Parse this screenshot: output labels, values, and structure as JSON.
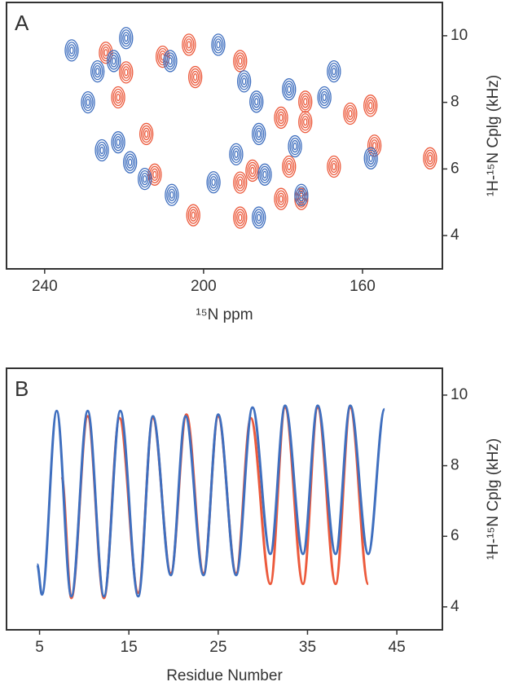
{
  "chart_data": [
    {
      "type": "scatter",
      "panel": "A",
      "xlabel": "¹⁵N ppm",
      "ylabel": "¹H-¹⁵N Cplg (kHz)",
      "xlim": [
        249.6,
        139.9
      ],
      "ylim": [
        3.0,
        11.0
      ],
      "xticks": [
        240,
        200,
        160
      ],
      "yticks": [
        4,
        6,
        8,
        10
      ],
      "series": [
        {
          "color": "#ec5a3c",
          "x": [
            224.6,
            221.5,
            219.5,
            214.4,
            210.3,
            203.7,
            202.1,
            212.3,
            202.6,
            190.8,
            190.8,
            187.7,
            178.5,
            180.5,
            175.4,
            174.4,
            180.5,
            174.4,
            167.2,
            163.1,
            158.0,
            190.8,
            143.0,
            157.0
          ],
          "y": [
            9.49,
            8.15,
            8.9,
            7.05,
            9.37,
            9.73,
            8.76,
            5.83,
            4.61,
            9.24,
            5.59,
            5.95,
            6.07,
            5.1,
            5.1,
            8.02,
            7.54,
            7.41,
            6.07,
            7.66,
            7.9,
            4.54,
            6.32,
            6.7
          ]
        },
        {
          "color": "#3f6fbf",
          "x": [
            233.2,
            226.7,
            229.1,
            219.5,
            222.6,
            221.5,
            225.6,
            218.5,
            214.8,
            208.0,
            208.4,
            197.5,
            196.3,
            191.8,
            189.8,
            186.1,
            186.7,
            186.1,
            184.6,
            178.5,
            177.0,
            175.4,
            169.6,
            167.2,
            157.9
          ],
          "y": [
            9.56,
            8.93,
            8.0,
            9.93,
            9.24,
            6.8,
            6.56,
            6.2,
            5.7,
            5.22,
            9.24,
            5.6,
            9.73,
            6.44,
            8.63,
            7.05,
            8.02,
            4.54,
            5.83,
            8.39,
            6.68,
            5.22,
            8.15,
            8.93,
            6.32
          ]
        }
      ]
    },
    {
      "type": "line",
      "panel": "B",
      "xlabel": "Residue Number",
      "ylabel": "¹H-¹⁵N Cplg (kHz)",
      "xlim": [
        1.3,
        50.1
      ],
      "ylim": [
        3.35,
        10.76
      ],
      "xticks": [
        5,
        15,
        25,
        35,
        45
      ],
      "yticks": [
        4,
        6,
        8,
        10
      ],
      "series": [
        {
          "color": "#ec5a3c",
          "x": [
            7.47,
            8.56,
            10.39,
            12.21,
            13.95,
            16.05,
            17.69,
            19.7,
            21.44,
            23.36,
            25.0,
            27.01,
            28.65,
            30.84,
            32.49,
            34.5,
            36.14,
            38.15,
            39.79,
            41.8
          ],
          "values": [
            7.7,
            4.25,
            9.4,
            4.25,
            9.35,
            4.4,
            9.35,
            4.95,
            9.45,
            4.95,
            9.4,
            4.95,
            9.35,
            4.65,
            9.65,
            4.65,
            9.65,
            4.65,
            9.65,
            4.65
          ]
        },
        {
          "color": "#3f6fbf",
          "x": [
            4.73,
            5.27,
            6.92,
            8.56,
            10.39,
            12.21,
            14.04,
            16.05,
            17.69,
            19.7,
            21.35,
            23.36,
            25.0,
            27.01,
            28.84,
            30.84,
            32.49,
            34.5,
            36.14,
            38.15,
            39.79,
            41.8,
            43.63
          ],
          "values": [
            5.2,
            4.35,
            9.55,
            4.3,
            9.55,
            4.3,
            9.55,
            4.3,
            9.4,
            4.9,
            9.4,
            4.9,
            9.45,
            4.9,
            9.65,
            5.5,
            9.7,
            5.5,
            9.7,
            5.5,
            9.7,
            5.5,
            9.6
          ]
        }
      ]
    }
  ]
}
